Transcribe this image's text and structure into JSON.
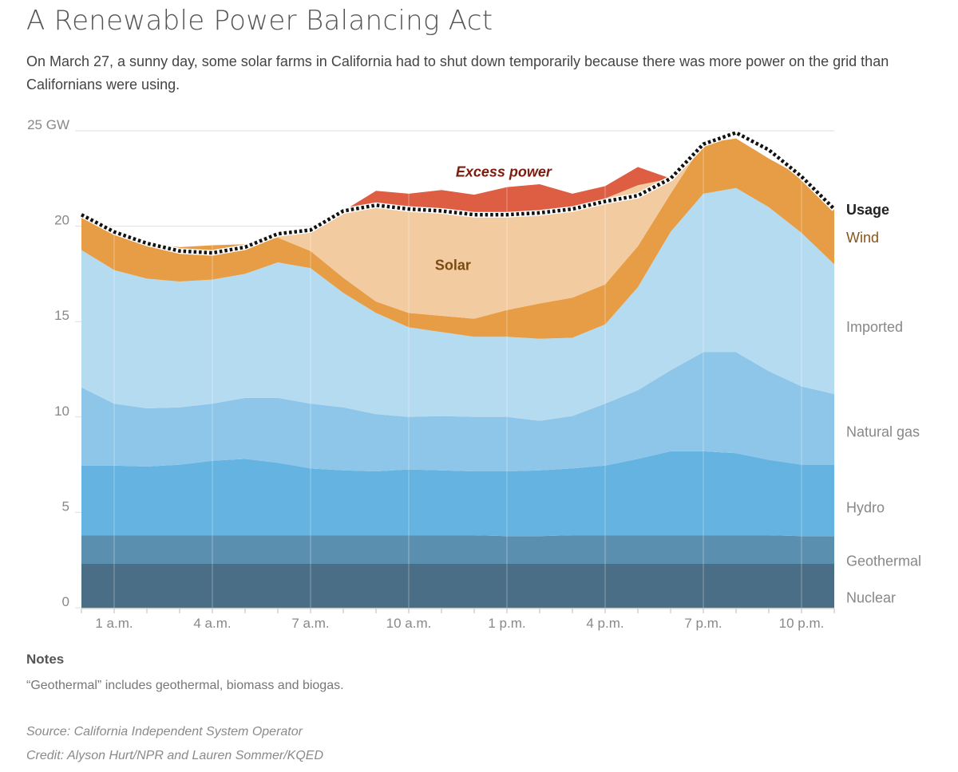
{
  "title": "A Renewable Power Balancing Act",
  "subtitle": "On March 27, a sunny day, some solar farms in California had to shut down temporarily because there was more power on the grid than Californians were using.",
  "notes": {
    "heading": "Notes",
    "text": "“Geothermal” includes geothermal, biomass and biogas."
  },
  "source": "Source: California Independent System Operator",
  "credit": "Credit: Alyson Hurt/NPR and Lauren Sommer/KQED",
  "chart_data": {
    "type": "area",
    "stacked": true,
    "x": [
      0,
      1,
      2,
      3,
      4,
      5,
      6,
      7,
      8,
      9,
      10,
      11,
      12,
      13,
      14,
      15,
      16,
      17,
      18,
      19,
      20,
      21,
      22,
      23
    ],
    "x_ticks": [
      {
        "x": 1,
        "label": "1 a.m."
      },
      {
        "x": 4,
        "label": "4 a.m."
      },
      {
        "x": 7,
        "label": "7 a.m."
      },
      {
        "x": 10,
        "label": "10 a.m."
      },
      {
        "x": 13,
        "label": "1 p.m."
      },
      {
        "x": 16,
        "label": "4 p.m."
      },
      {
        "x": 19,
        "label": "7 p.m."
      },
      {
        "x": 22,
        "label": "10 p.m."
      }
    ],
    "ylim": [
      0,
      25
    ],
    "y_ticks": [
      {
        "value": 0,
        "label": "0"
      },
      {
        "value": 5,
        "label": "5"
      },
      {
        "value": 10,
        "label": "10"
      },
      {
        "value": 15,
        "label": "15"
      },
      {
        "value": 20,
        "label": "20"
      },
      {
        "value": 25,
        "label": "25 GW"
      }
    ],
    "grid": "vertical",
    "series": [
      {
        "name": "Nuclear",
        "color": "#4a6e85",
        "values": [
          2.3,
          2.3,
          2.3,
          2.3,
          2.3,
          2.3,
          2.3,
          2.3,
          2.3,
          2.3,
          2.3,
          2.3,
          2.3,
          2.3,
          2.3,
          2.3,
          2.3,
          2.3,
          2.3,
          2.3,
          2.3,
          2.3,
          2.3,
          2.3
        ]
      },
      {
        "name": "Geothermal",
        "color": "#5b8fb0",
        "values": [
          1.5,
          1.5,
          1.5,
          1.5,
          1.5,
          1.5,
          1.5,
          1.5,
          1.5,
          1.5,
          1.5,
          1.5,
          1.5,
          1.45,
          1.45,
          1.5,
          1.5,
          1.5,
          1.5,
          1.5,
          1.5,
          1.5,
          1.45,
          1.45
        ]
      },
      {
        "name": "Hydro",
        "color": "#64b3e1",
        "values": [
          3.65,
          3.65,
          3.6,
          3.7,
          3.9,
          4.0,
          3.8,
          3.5,
          3.4,
          3.35,
          3.45,
          3.4,
          3.35,
          3.4,
          3.45,
          3.5,
          3.65,
          4.0,
          4.4,
          4.4,
          4.3,
          3.95,
          3.75,
          3.75
        ]
      },
      {
        "name": "Natural gas",
        "color": "#8ec6e9",
        "values": [
          4.1,
          3.25,
          3.05,
          3.0,
          3.0,
          3.2,
          3.4,
          3.4,
          3.3,
          3.0,
          2.75,
          2.85,
          2.85,
          2.85,
          2.6,
          2.75,
          3.25,
          3.6,
          4.25,
          5.2,
          5.3,
          4.65,
          4.1,
          3.7
        ]
      },
      {
        "name": "Imported",
        "color": "#b5dbf1",
        "values": [
          7.2,
          7.0,
          6.8,
          6.6,
          6.5,
          6.5,
          7.1,
          7.1,
          6.0,
          5.3,
          4.7,
          4.4,
          4.2,
          4.2,
          4.3,
          4.1,
          4.15,
          5.4,
          7.25,
          8.3,
          8.6,
          8.6,
          8.05,
          6.8
        ]
      },
      {
        "name": "Wind",
        "color": "#e79d46",
        "values": [
          1.75,
          1.95,
          1.85,
          1.8,
          1.8,
          1.55,
          1.3,
          0.9,
          0.8,
          0.6,
          0.75,
          0.85,
          0.95,
          1.4,
          1.85,
          2.1,
          2.1,
          2.15,
          2.0,
          2.65,
          2.6,
          2.55,
          2.95,
          2.9
        ]
      },
      {
        "name": "Solar",
        "color": "#f2ccA0",
        "values": [
          0,
          0,
          0,
          0,
          0,
          0,
          0.05,
          1.0,
          3.4,
          5.0,
          5.55,
          5.6,
          5.45,
          5.0,
          4.7,
          4.65,
          4.5,
          3.2,
          0.8,
          0,
          0,
          0,
          0,
          0
        ]
      },
      {
        "name": "Excess power",
        "color": "#dd5e43",
        "values": [
          0,
          0,
          0,
          0,
          0,
          0,
          0,
          0,
          0.1,
          0.8,
          0.7,
          1.0,
          1.05,
          1.45,
          1.55,
          0.8,
          0.65,
          0.95,
          0,
          0,
          0,
          0,
          0,
          0
        ]
      }
    ],
    "usage": {
      "name": "Usage",
      "values": [
        20.6,
        19.7,
        19.1,
        18.7,
        18.6,
        18.9,
        19.6,
        19.8,
        20.8,
        21.1,
        20.9,
        20.8,
        20.6,
        20.6,
        20.7,
        20.9,
        21.3,
        21.6,
        22.5,
        24.3,
        24.9,
        24.0,
        22.6,
        20.9
      ]
    },
    "area_labels": [
      {
        "text": "Excess power",
        "color": "#7a1d10"
      },
      {
        "text": "Solar",
        "color": "#7a4a13"
      }
    ],
    "legend_right": [
      {
        "text": "Usage",
        "color": "#222222",
        "bold": true
      },
      {
        "text": "Wind",
        "color": "#8a5418"
      },
      {
        "text": "Imported",
        "color": "#888888"
      },
      {
        "text": "Natural gas",
        "color": "#888888"
      },
      {
        "text": "Hydro",
        "color": "#888888"
      },
      {
        "text": "Geothermal",
        "color": "#888888"
      },
      {
        "text": "Nuclear",
        "color": "#888888"
      }
    ]
  }
}
